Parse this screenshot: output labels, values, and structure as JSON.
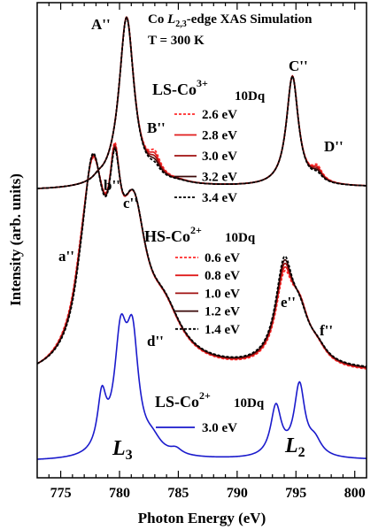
{
  "chart_data": {
    "type": "line",
    "title": "Co L2,3-edge XAS Simulation",
    "title_parts": {
      "prefix": "Co ",
      "L": "L",
      "sub": "2,3",
      "suffix": "-edge XAS Simulation"
    },
    "subtitle": "T = 300 K",
    "xlabel": "Photon Energy (eV)",
    "ylabel": "Intensity (arb. units)",
    "xlim": [
      773,
      801
    ],
    "xticks": [
      "775",
      "780",
      "785",
      "790",
      "795",
      "800"
    ],
    "ylim": [
      0,
      1
    ],
    "grid": false,
    "edge_labels": {
      "L": "L",
      "L3": "3",
      "L2": "2"
    },
    "panels": [
      {
        "name": "LS-Co3+",
        "label_main": "LS-Co",
        "label_sup": "3+",
        "legend_header": "10Dq",
        "legend_placement": "top-right",
        "peak_labels": [
          "A''",
          "B''",
          "C''",
          "D''"
        ],
        "series": [
          {
            "name": "2.6 eV",
            "color": "#ff2a2a",
            "dash": "dotted"
          },
          {
            "name": "2.8 eV",
            "color": "#e01c1c",
            "dash": "solid"
          },
          {
            "name": "3.0 eV",
            "color": "#a01010",
            "dash": "solid"
          },
          {
            "name": "3.2 eV",
            "color": "#3a0808",
            "dash": "solid"
          },
          {
            "name": "3.4 eV",
            "color": "#000000",
            "dash": "dotted"
          }
        ]
      },
      {
        "name": "HS-Co2+",
        "label_main": "HS-Co",
        "label_sup": "2+",
        "legend_header": "10Dq",
        "legend_placement": "right",
        "peak_labels": [
          "a''",
          "b''",
          "c''",
          "d''",
          "e''",
          "f''"
        ],
        "series": [
          {
            "name": "0.6 eV",
            "color": "#ff2a2a",
            "dash": "dotted"
          },
          {
            "name": "0.8 eV",
            "color": "#e01c1c",
            "dash": "solid"
          },
          {
            "name": "1.0 eV",
            "color": "#a01010",
            "dash": "solid"
          },
          {
            "name": "1.2 eV",
            "color": "#3a0808",
            "dash": "solid"
          },
          {
            "name": "1.4 eV",
            "color": "#000000",
            "dash": "dotted"
          }
        ]
      },
      {
        "name": "LS-Co2+",
        "label_main": "LS-Co",
        "label_sup": "2+",
        "legend_header": "10Dq",
        "legend_placement": "bottom-center",
        "peak_labels": [],
        "series": [
          {
            "name": "3.0 eV",
            "color": "#1a1acc",
            "dash": "solid"
          }
        ]
      }
    ]
  }
}
